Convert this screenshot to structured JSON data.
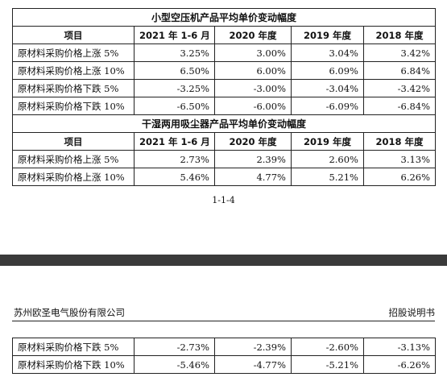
{
  "table1": {
    "title": "小型空压机产品平均单价变动幅度",
    "headers": [
      "项目",
      "2021 年 1-6 月",
      "2020 年度",
      "2019 年度",
      "2018 年度"
    ],
    "rows": [
      {
        "label": "原材料采购价格上涨 5%",
        "values": [
          "3.25%",
          "3.00%",
          "3.04%",
          "3.42%"
        ]
      },
      {
        "label": "原材料采购价格上涨 10%",
        "values": [
          "6.50%",
          "6.00%",
          "6.09%",
          "6.84%"
        ]
      },
      {
        "label": "原材料采购价格下跌 5%",
        "values": [
          "-3.25%",
          "-3.00%",
          "-3.04%",
          "-3.42%"
        ]
      },
      {
        "label": "原材料采购价格下跌 10%",
        "values": [
          "-6.50%",
          "-6.00%",
          "-6.09%",
          "-6.84%"
        ]
      }
    ]
  },
  "table2": {
    "title": "干湿两用吸尘器产品平均单价变动幅度",
    "headers": [
      "项目",
      "2021 年 1-6 月",
      "2020 年度",
      "2019 年度",
      "2018 年度"
    ],
    "rows": [
      {
        "label": "原材料采购价格上涨 5%",
        "values": [
          "2.73%",
          "2.39%",
          "2.60%",
          "3.13%"
        ]
      },
      {
        "label": "原材料采购价格上涨 10%",
        "values": [
          "5.46%",
          "4.77%",
          "5.21%",
          "6.26%"
        ]
      }
    ]
  },
  "page_number": "1-1-4",
  "header": {
    "company": "苏州欧圣电气股份有限公司",
    "doc_type": "招股说明书"
  },
  "table2_cont": {
    "rows": [
      {
        "label": "原材料采购价格下跌 5%",
        "values": [
          "-2.73%",
          "-2.39%",
          "-2.60%",
          "-3.13%"
        ]
      },
      {
        "label": "原材料采购价格下跌 10%",
        "values": [
          "-5.46%",
          "-4.77%",
          "-5.21%",
          "-6.26%"
        ]
      }
    ]
  }
}
